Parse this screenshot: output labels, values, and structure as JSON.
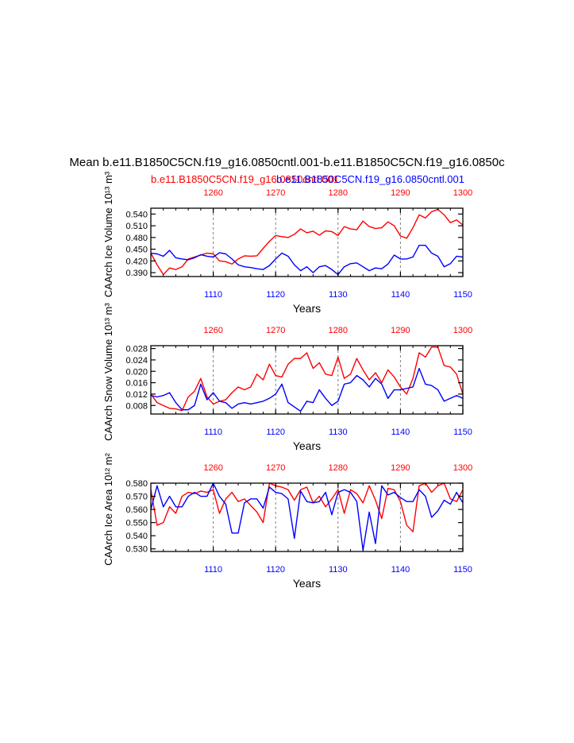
{
  "title": "Mean b.e11.B1850C5CN.f19_g16.0850cntl.001-b.e11.B1850C5CN.f19_g16.0850c",
  "legend": {
    "red_label": "b.e11.B1850C5CN.f19_g16.0850cntl.001",
    "blue_label": "b.e11.B1850C5CN.f19_g16.0850cntl.001"
  },
  "colors": {
    "red": "#ff0000",
    "blue": "#0000ff",
    "axis": "#000000",
    "grid": "#808080"
  },
  "chart_data": [
    {
      "type": "line",
      "ylabel": "CAArch Ice Volume 10¹³ m³",
      "xlabel": "Years",
      "xlim_bottom": [
        1100,
        1150
      ],
      "xlim_top": [
        1250,
        1300
      ],
      "x_ticks_bottom": [
        "1110",
        "1120",
        "1130",
        "1140",
        "1150"
      ],
      "x_ticks_top": [
        "1260",
        "1270",
        "1280",
        "1290",
        "1300"
      ],
      "ylim": [
        0.38,
        0.555
      ],
      "y_ticks": [
        "0.540",
        "0.510",
        "0.480",
        "0.450",
        "0.420",
        "0.390"
      ],
      "series": [
        {
          "name": "b.e11.B1850C5CN.f19_g16.0850cntl.001",
          "color": "#ff0000",
          "x": [
            1250,
            1251,
            1252,
            1253,
            1254,
            1255,
            1256,
            1257,
            1258,
            1259,
            1260,
            1261,
            1262,
            1263,
            1264,
            1265,
            1266,
            1267,
            1268,
            1269,
            1270,
            1271,
            1272,
            1273,
            1274,
            1275,
            1276,
            1277,
            1278,
            1279,
            1280,
            1281,
            1282,
            1283,
            1284,
            1285,
            1286,
            1287,
            1288,
            1289,
            1290,
            1291,
            1292,
            1293,
            1294,
            1295,
            1296,
            1297,
            1298,
            1299,
            1300
          ],
          "values": [
            0.44,
            0.41,
            0.385,
            0.402,
            0.398,
            0.405,
            0.425,
            0.43,
            0.435,
            0.44,
            0.438,
            0.42,
            0.418,
            0.412,
            0.425,
            0.433,
            0.432,
            0.433,
            0.452,
            0.47,
            0.485,
            0.482,
            0.48,
            0.488,
            0.502,
            0.492,
            0.496,
            0.486,
            0.497,
            0.495,
            0.485,
            0.508,
            0.502,
            0.5,
            0.522,
            0.508,
            0.503,
            0.505,
            0.52,
            0.51,
            0.484,
            0.478,
            0.505,
            0.538,
            0.53,
            0.546,
            0.552,
            0.538,
            0.518,
            0.525,
            0.512
          ]
        },
        {
          "name": "b.e11.B1850C5CN.f19_g16.0850cntl.001",
          "color": "#0000ff",
          "x": [
            1100,
            1101,
            1102,
            1103,
            1104,
            1105,
            1106,
            1107,
            1108,
            1109,
            1110,
            1111,
            1112,
            1113,
            1114,
            1115,
            1116,
            1117,
            1118,
            1119,
            1120,
            1121,
            1122,
            1123,
            1124,
            1125,
            1126,
            1127,
            1128,
            1129,
            1130,
            1131,
            1132,
            1133,
            1134,
            1135,
            1136,
            1137,
            1138,
            1139,
            1140,
            1141,
            1142,
            1143,
            1144,
            1145,
            1146,
            1147,
            1148,
            1149,
            1150
          ],
          "values": [
            0.44,
            0.438,
            0.432,
            0.447,
            0.428,
            0.425,
            0.423,
            0.428,
            0.436,
            0.432,
            0.43,
            0.441,
            0.438,
            0.425,
            0.41,
            0.405,
            0.403,
            0.4,
            0.398,
            0.408,
            0.425,
            0.44,
            0.432,
            0.41,
            0.395,
            0.405,
            0.39,
            0.405,
            0.408,
            0.398,
            0.385,
            0.405,
            0.413,
            0.415,
            0.405,
            0.395,
            0.402,
            0.4,
            0.412,
            0.435,
            0.425,
            0.425,
            0.43,
            0.46,
            0.46,
            0.44,
            0.432,
            0.405,
            0.413,
            0.432,
            0.43
          ]
        }
      ]
    },
    {
      "type": "line",
      "ylabel": "CAArch Snow Volume 10¹³ m³",
      "xlabel": "Years",
      "xlim_bottom": [
        1100,
        1150
      ],
      "xlim_top": [
        1250,
        1300
      ],
      "x_ticks_bottom": [
        "1110",
        "1120",
        "1130",
        "1140",
        "1150"
      ],
      "x_ticks_top": [
        "1260",
        "1270",
        "1280",
        "1290",
        "1300"
      ],
      "ylim": [
        0.005,
        0.029
      ],
      "y_ticks": [
        "0.028",
        "0.024",
        "0.020",
        "0.016",
        "0.012",
        "0.008"
      ],
      "series": [
        {
          "name": "b.e11.B1850C5CN.f19_g16.0850cntl.001",
          "color": "#ff0000",
          "x": [
            1250,
            1251,
            1252,
            1253,
            1254,
            1255,
            1256,
            1257,
            1258,
            1259,
            1260,
            1261,
            1262,
            1263,
            1264,
            1265,
            1266,
            1267,
            1268,
            1269,
            1270,
            1271,
            1272,
            1273,
            1274,
            1275,
            1276,
            1277,
            1278,
            1279,
            1280,
            1281,
            1282,
            1283,
            1284,
            1285,
            1286,
            1287,
            1288,
            1289,
            1290,
            1291,
            1292,
            1293,
            1294,
            1295,
            1296,
            1297,
            1298,
            1299,
            1300
          ],
          "values": [
            0.012,
            0.009,
            0.008,
            0.007,
            0.0068,
            0.0062,
            0.011,
            0.013,
            0.0175,
            0.011,
            0.0085,
            0.0095,
            0.01,
            0.0125,
            0.0145,
            0.0135,
            0.0145,
            0.019,
            0.017,
            0.0225,
            0.0185,
            0.018,
            0.0225,
            0.0245,
            0.0245,
            0.0265,
            0.021,
            0.023,
            0.019,
            0.0185,
            0.025,
            0.0175,
            0.019,
            0.0245,
            0.0205,
            0.017,
            0.0195,
            0.016,
            0.0205,
            0.018,
            0.0145,
            0.012,
            0.0175,
            0.0265,
            0.025,
            0.0285,
            0.0285,
            0.022,
            0.0215,
            0.019,
            0.012
          ]
        },
        {
          "name": "b.e11.B1850C5CN.f19_g16.0850cntl.001",
          "color": "#0000ff",
          "x": [
            1100,
            1101,
            1102,
            1103,
            1104,
            1105,
            1106,
            1107,
            1108,
            1109,
            1110,
            1111,
            1112,
            1113,
            1114,
            1115,
            1116,
            1117,
            1118,
            1119,
            1120,
            1121,
            1122,
            1123,
            1124,
            1125,
            1126,
            1127,
            1128,
            1129,
            1130,
            1131,
            1132,
            1133,
            1134,
            1135,
            1136,
            1137,
            1138,
            1139,
            1140,
            1141,
            1142,
            1143,
            1144,
            1145,
            1146,
            1147,
            1148,
            1149,
            1150
          ],
          "values": [
            0.0115,
            0.011,
            0.0115,
            0.0125,
            0.009,
            0.0065,
            0.0065,
            0.008,
            0.0155,
            0.01,
            0.0125,
            0.0095,
            0.009,
            0.007,
            0.0085,
            0.009,
            0.0085,
            0.009,
            0.0095,
            0.0105,
            0.012,
            0.0155,
            0.009,
            0.0075,
            0.006,
            0.0095,
            0.009,
            0.0135,
            0.0105,
            0.008,
            0.0095,
            0.0155,
            0.016,
            0.0185,
            0.017,
            0.0145,
            0.0175,
            0.0155,
            0.0105,
            0.0135,
            0.0135,
            0.014,
            0.0145,
            0.021,
            0.0155,
            0.015,
            0.0135,
            0.0095,
            0.0105,
            0.0115,
            0.0105
          ]
        }
      ]
    },
    {
      "type": "line",
      "ylabel": "CAArch Ice Area 10¹² m²",
      "xlabel": "Years",
      "xlim_bottom": [
        1100,
        1150
      ],
      "xlim_top": [
        1250,
        1300
      ],
      "x_ticks_bottom": [
        "1110",
        "1120",
        "1130",
        "1140",
        "1150"
      ],
      "x_ticks_top": [
        "1260",
        "1270",
        "1280",
        "1290",
        "1300"
      ],
      "ylim": [
        0.528,
        0.58
      ],
      "y_ticks": [
        "0.580",
        "0.570",
        "0.560",
        "0.550",
        "0.540",
        "0.530"
      ],
      "series": [
        {
          "name": "b.e11.B1850C5CN.f19_g16.0850cntl.001",
          "color": "#ff0000",
          "x": [
            1250,
            1251,
            1252,
            1253,
            1254,
            1255,
            1256,
            1257,
            1258,
            1259,
            1260,
            1261,
            1262,
            1263,
            1264,
            1265,
            1266,
            1267,
            1268,
            1269,
            1270,
            1271,
            1272,
            1273,
            1274,
            1275,
            1276,
            1277,
            1278,
            1279,
            1280,
            1281,
            1282,
            1283,
            1284,
            1285,
            1286,
            1287,
            1288,
            1289,
            1290,
            1291,
            1292,
            1293,
            1294,
            1295,
            1296,
            1297,
            1298,
            1299,
            1300
          ],
          "values": [
            0.575,
            0.548,
            0.55,
            0.562,
            0.557,
            0.57,
            0.573,
            0.572,
            0.574,
            0.573,
            0.575,
            0.557,
            0.568,
            0.573,
            0.566,
            0.568,
            0.563,
            0.558,
            0.55,
            0.58,
            0.578,
            0.577,
            0.575,
            0.567,
            0.575,
            0.577,
            0.565,
            0.57,
            0.562,
            0.568,
            0.575,
            0.557,
            0.575,
            0.572,
            0.565,
            0.578,
            0.567,
            0.553,
            0.576,
            0.575,
            0.566,
            0.548,
            0.543,
            0.578,
            0.58,
            0.573,
            0.578,
            0.58,
            0.568,
            0.566,
            0.575
          ]
        },
        {
          "name": "b.e11.B1850C5CN.f19_g16.0850cntl.001",
          "color": "#0000ff",
          "x": [
            1100,
            1101,
            1102,
            1103,
            1104,
            1105,
            1106,
            1107,
            1108,
            1109,
            1110,
            1111,
            1112,
            1113,
            1114,
            1115,
            1116,
            1117,
            1118,
            1119,
            1120,
            1121,
            1122,
            1123,
            1124,
            1125,
            1126,
            1127,
            1128,
            1129,
            1130,
            1131,
            1132,
            1133,
            1134,
            1135,
            1136,
            1137,
            1138,
            1139,
            1140,
            1141,
            1142,
            1143,
            1144,
            1145,
            1146,
            1147,
            1148,
            1149,
            1150
          ],
          "values": [
            0.56,
            0.578,
            0.562,
            0.57,
            0.562,
            0.562,
            0.57,
            0.573,
            0.57,
            0.57,
            0.58,
            0.57,
            0.564,
            0.542,
            0.542,
            0.565,
            0.568,
            0.568,
            0.561,
            0.577,
            0.573,
            0.572,
            0.568,
            0.538,
            0.574,
            0.566,
            0.565,
            0.566,
            0.573,
            0.556,
            0.573,
            0.575,
            0.573,
            0.566,
            0.529,
            0.558,
            0.534,
            0.578,
            0.571,
            0.573,
            0.569,
            0.566,
            0.566,
            0.575,
            0.57,
            0.554,
            0.559,
            0.567,
            0.564,
            0.573,
            0.565
          ]
        }
      ]
    }
  ]
}
